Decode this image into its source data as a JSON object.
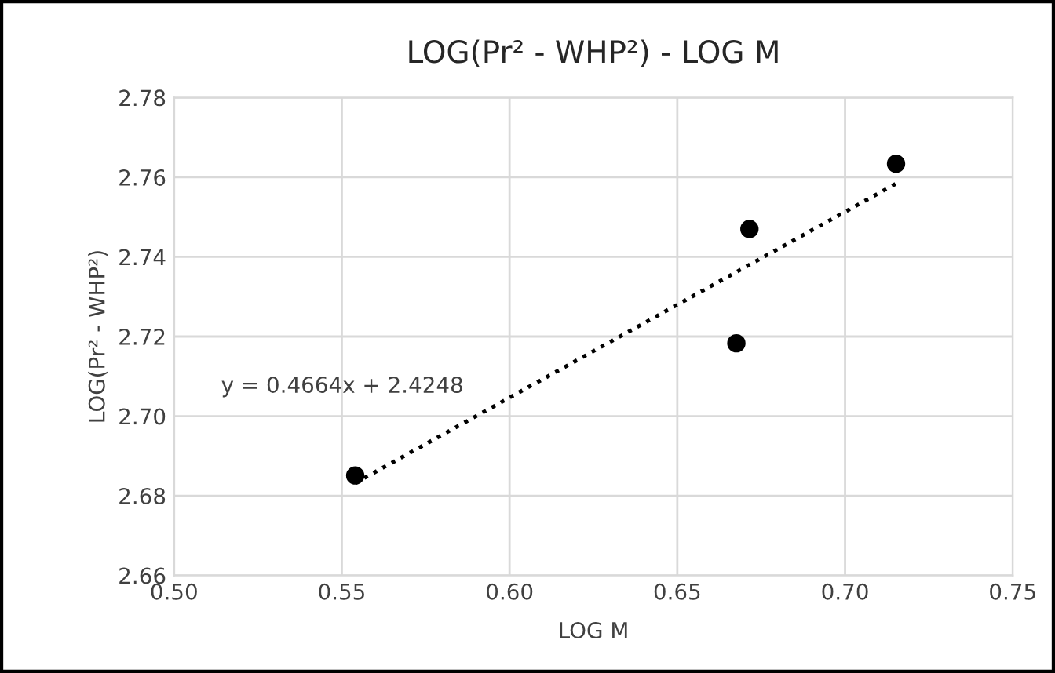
{
  "chart_data": {
    "type": "scatter",
    "title": "LOG(Pr² - WHP²) - LOG M",
    "xlabel": "LOG M",
    "ylabel": "LOG(Pr² - WHP²)",
    "series": [
      {
        "color": "#000000",
        "x": [
          0.554,
          0.6676,
          0.6715,
          0.7152
        ],
        "values": [
          2.6851,
          2.7183,
          2.747,
          2.7634
        ],
        "marker": "circle"
      },
      {
        "type": "line",
        "color": "#000000",
        "x": [
          0.554,
          0.7152
        ],
        "values": [
          2.6832,
          2.7584
        ],
        "line_style": "dotted",
        "marker": "none"
      }
    ],
    "annotations": [
      "y = 0.4664x + 2.4248"
    ],
    "xlim": [
      0.5,
      0.75
    ],
    "xticks": [
      {
        "value": 0.5,
        "label": "0.50"
      },
      {
        "value": 0.55,
        "label": "0.55"
      },
      {
        "value": 0.6,
        "label": "0.60"
      },
      {
        "value": 0.65,
        "label": "0.65"
      },
      {
        "value": 0.7,
        "label": "0.70"
      },
      {
        "value": 0.75,
        "label": "0.75"
      }
    ],
    "ylim": [
      2.66,
      2.78
    ],
    "yticks": [
      {
        "value": 2.66,
        "label": "2.66"
      },
      {
        "value": 2.68,
        "label": "2.68"
      },
      {
        "value": 2.7,
        "label": "2.70"
      },
      {
        "value": 2.72,
        "label": "2.72"
      },
      {
        "value": 2.74,
        "label": "2.74"
      },
      {
        "value": 2.76,
        "label": "2.76"
      },
      {
        "value": 2.78,
        "label": "2.78"
      }
    ],
    "grid": true,
    "legend": false
  }
}
